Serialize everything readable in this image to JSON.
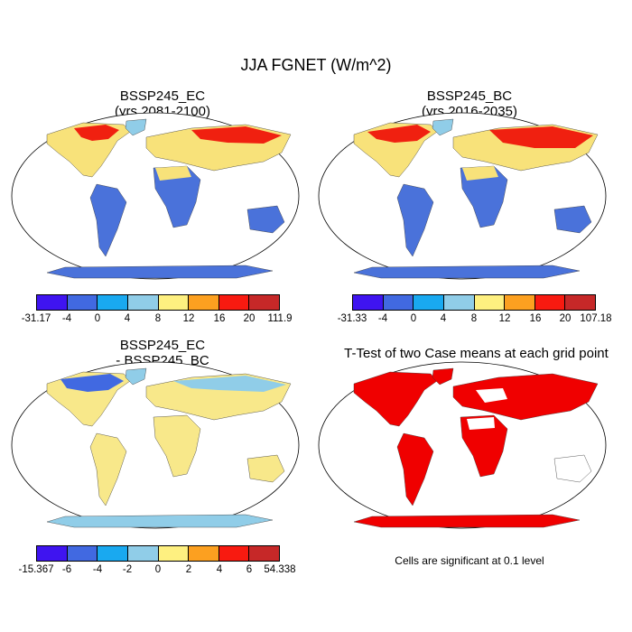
{
  "figure_title": "JJA FGNET (W/m^2)",
  "panels": [
    {
      "title_line1": "BSSP245_EC",
      "title_line2": "(yrs 2081-2100)"
    },
    {
      "title_line1": "BSSP245_BC",
      "title_line2": "(yrs 2016-2035)"
    },
    {
      "title_line1": "BSSP245_EC",
      "title_line2": "- BSSP245_BC"
    },
    {
      "title_line1": "T-Test of two Case means at each grid point",
      "title_line2": ""
    }
  ],
  "colorbars": [
    {
      "colors": [
        "#3f14f0",
        "#4169e1",
        "#19a9f0",
        "#90cde8",
        "#fef080",
        "#fca020",
        "#f81a10",
        "#c62828"
      ],
      "labels": [
        "-31.17",
        "-4",
        "0",
        "4",
        "8",
        "12",
        "16",
        "20",
        "111.9"
      ]
    },
    {
      "colors": [
        "#3f14f0",
        "#4169e1",
        "#19a9f0",
        "#90cde8",
        "#fef080",
        "#fca020",
        "#f81a10",
        "#c62828"
      ],
      "labels": [
        "-31.33",
        "-4",
        "0",
        "4",
        "8",
        "12",
        "16",
        "20",
        "107.18"
      ]
    },
    {
      "colors": [
        "#3f14f0",
        "#4169e1",
        "#19a9f0",
        "#90cde8",
        "#fef080",
        "#fca020",
        "#f81a10",
        "#c62828"
      ],
      "labels": [
        "-15.367",
        "-6",
        "-4",
        "-2",
        "0",
        "2",
        "4",
        "6",
        "54.338"
      ]
    }
  ],
  "significance_note": "Cells are significant at 0.1 level",
  "map_fill_colors": {
    "ocean": "#ffffff",
    "panel1_land": "#f8e27a",
    "panel1_hot": "#f02010",
    "panel1_cool": "#4a72da",
    "panel1_mid": "#90cde8",
    "panel2_land": "#f8e27a",
    "panel2_hot": "#f02010",
    "panel2_cool": "#4a72da",
    "panel2_mid": "#90cde8",
    "panel3_land": "#f8e88a",
    "panel3_cool": "#90cde8",
    "panel3_blue": "#4169e1",
    "panel4_sig": "#f00000"
  }
}
